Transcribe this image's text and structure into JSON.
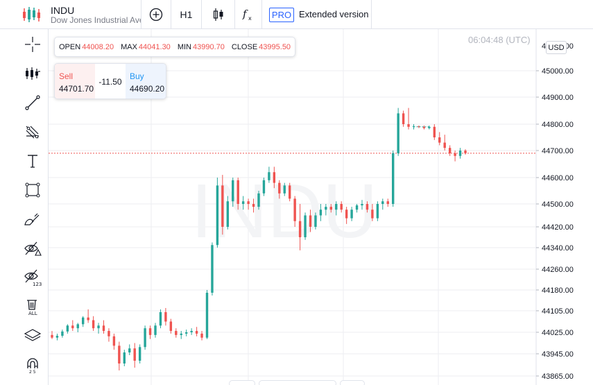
{
  "header": {
    "symbol": "INDU",
    "description": "Dow Jones Industrial Average",
    "interval": "H1",
    "pro_label": "PRO",
    "extended_label": "Extended version"
  },
  "left_toolbar": [
    "crosshair-icon",
    "indicators-icon",
    "trend-line-icon",
    "fib-icon",
    "text-icon",
    "rectangle-icon",
    "brush-icon",
    "hide-drawings-icon",
    "hide-indicators-icon",
    "remove-all-icon",
    "layers-icon",
    "magnet-icon"
  ],
  "ohlc": {
    "open_label": "OPEN",
    "open": "44008.20",
    "max_label": "MAX",
    "max": "44041.30",
    "min_label": "MIN",
    "min": "43990.70",
    "close_label": "CLOSE",
    "close": "43995.50"
  },
  "trade": {
    "sell_label": "Sell",
    "sell": "44701.70",
    "spread": "-11.50",
    "buy_label": "Buy",
    "buy": "44690.20"
  },
  "time": "06:04:48 (UTC)",
  "currency": "USD",
  "watermark": "INDU",
  "colors": {
    "up": "#26a69a",
    "down": "#ef5350",
    "accent": "#2962ff"
  },
  "chart_data": {
    "type": "candlestick",
    "y_ticks": [
      45000,
      44900,
      44800,
      44700,
      44600,
      44500,
      44420,
      44340,
      44260,
      44180,
      44105,
      44025,
      43945,
      43865
    ],
    "y_tick_labels": [
      "45000.00",
      "44900.00",
      "44800.00",
      "44700.00",
      "44600.00",
      "44500.00",
      "44420.00",
      "44340.00",
      "44260.00",
      "44180.00",
      "44105.00",
      "44025.00",
      "43945.00",
      "43865.00"
    ],
    "current_price": 44690.2,
    "candles": [
      [
        44015,
        44030,
        44000,
        44005
      ],
      [
        44005,
        44020,
        43995,
        44012
      ],
      [
        44012,
        44035,
        44005,
        44028
      ],
      [
        44028,
        44055,
        44020,
        44050
      ],
      [
        44050,
        44070,
        44030,
        44040
      ],
      [
        44040,
        44060,
        44025,
        44055
      ],
      [
        44055,
        44085,
        44045,
        44080
      ],
      [
        44080,
        44110,
        44060,
        44070
      ],
      [
        44070,
        44085,
        44030,
        44040
      ],
      [
        44040,
        44060,
        44020,
        44050
      ],
      [
        44050,
        44070,
        44020,
        44030
      ],
      [
        44030,
        44040,
        43990,
        44010
      ],
      [
        44010,
        44020,
        43960,
        43975
      ],
      [
        43975,
        43990,
        43885,
        43910
      ],
      [
        43910,
        43960,
        43900,
        43950
      ],
      [
        43950,
        43980,
        43940,
        43965
      ],
      [
        43965,
        43985,
        43895,
        43920
      ],
      [
        43920,
        43980,
        43910,
        43970
      ],
      [
        43970,
        44050,
        43960,
        44040
      ],
      [
        44040,
        44050,
        44000,
        44015
      ],
      [
        44015,
        44060,
        44005,
        44050
      ],
      [
        44050,
        44110,
        44040,
        44100
      ],
      [
        44100,
        44115,
        44050,
        44065
      ],
      [
        44065,
        44075,
        44020,
        44030
      ],
      [
        44030,
        44040,
        44005,
        44015
      ],
      [
        44015,
        44030,
        44000,
        44020
      ],
      [
        44020,
        44035,
        44010,
        44025
      ],
      [
        44025,
        44040,
        44015,
        44030
      ],
      [
        44030,
        44045,
        44010,
        44020
      ],
      [
        44020,
        44030,
        43995,
        44005
      ],
      [
        44005,
        44180,
        44000,
        44170
      ],
      [
        44170,
        44360,
        44160,
        44350
      ],
      [
        44350,
        44600,
        44340,
        44570
      ],
      [
        44570,
        44610,
        44390,
        44420
      ],
      [
        44420,
        44530,
        44410,
        44510
      ],
      [
        44510,
        44600,
        44490,
        44590
      ],
      [
        44590,
        44600,
        44480,
        44500
      ],
      [
        44500,
        44530,
        44480,
        44510
      ],
      [
        44510,
        44520,
        44480,
        44500
      ],
      [
        44500,
        44520,
        44470,
        44490
      ],
      [
        44490,
        44550,
        44480,
        44540
      ],
      [
        44540,
        44600,
        44530,
        44590
      ],
      [
        44590,
        44640,
        44580,
        44620
      ],
      [
        44620,
        44640,
        44560,
        44580
      ],
      [
        44580,
        44590,
        44520,
        44540
      ],
      [
        44540,
        44580,
        44530,
        44570
      ],
      [
        44570,
        44580,
        44510,
        44520
      ],
      [
        44520,
        44530,
        44420,
        44440
      ],
      [
        44440,
        44500,
        44330,
        44380
      ],
      [
        44380,
        44470,
        44370,
        44460
      ],
      [
        44460,
        44480,
        44400,
        44420
      ],
      [
        44420,
        44470,
        44410,
        44460
      ],
      [
        44460,
        44500,
        44440,
        44480
      ],
      [
        44480,
        44500,
        44460,
        44490
      ],
      [
        44490,
        44500,
        44470,
        44480
      ],
      [
        44480,
        44510,
        44460,
        44500
      ],
      [
        44500,
        44510,
        44470,
        44480
      ],
      [
        44480,
        44490,
        44430,
        44450
      ],
      [
        44450,
        44490,
        44440,
        44480
      ],
      [
        44480,
        44500,
        44470,
        44495
      ],
      [
        44495,
        44515,
        44480,
        44500
      ],
      [
        44500,
        44510,
        44470,
        44480
      ],
      [
        44480,
        44500,
        44440,
        44450
      ],
      [
        44450,
        44510,
        44440,
        44500
      ],
      [
        44500,
        44520,
        44480,
        44510
      ],
      [
        44510,
        44520,
        44490,
        44500
      ],
      [
        44500,
        44700,
        44490,
        44690
      ],
      [
        44690,
        44860,
        44680,
        44840
      ],
      [
        44840,
        44850,
        44790,
        44800
      ],
      [
        44800,
        44860,
        44780,
        44790
      ],
      [
        44790,
        44800,
        44780,
        44792
      ],
      [
        44792,
        44795,
        44785,
        44790
      ],
      [
        44790,
        44795,
        44780,
        44785
      ],
      [
        44785,
        44795,
        44780,
        44790
      ],
      [
        44790,
        44800,
        44740,
        44750
      ],
      [
        44750,
        44770,
        44720,
        44730
      ],
      [
        44730,
        44760,
        44700,
        44710
      ],
      [
        44710,
        44720,
        44680,
        44690
      ],
      [
        44690,
        44700,
        44660,
        44680
      ],
      [
        44680,
        44710,
        44670,
        44700
      ],
      [
        44700,
        44705,
        44685,
        44690
      ]
    ]
  }
}
